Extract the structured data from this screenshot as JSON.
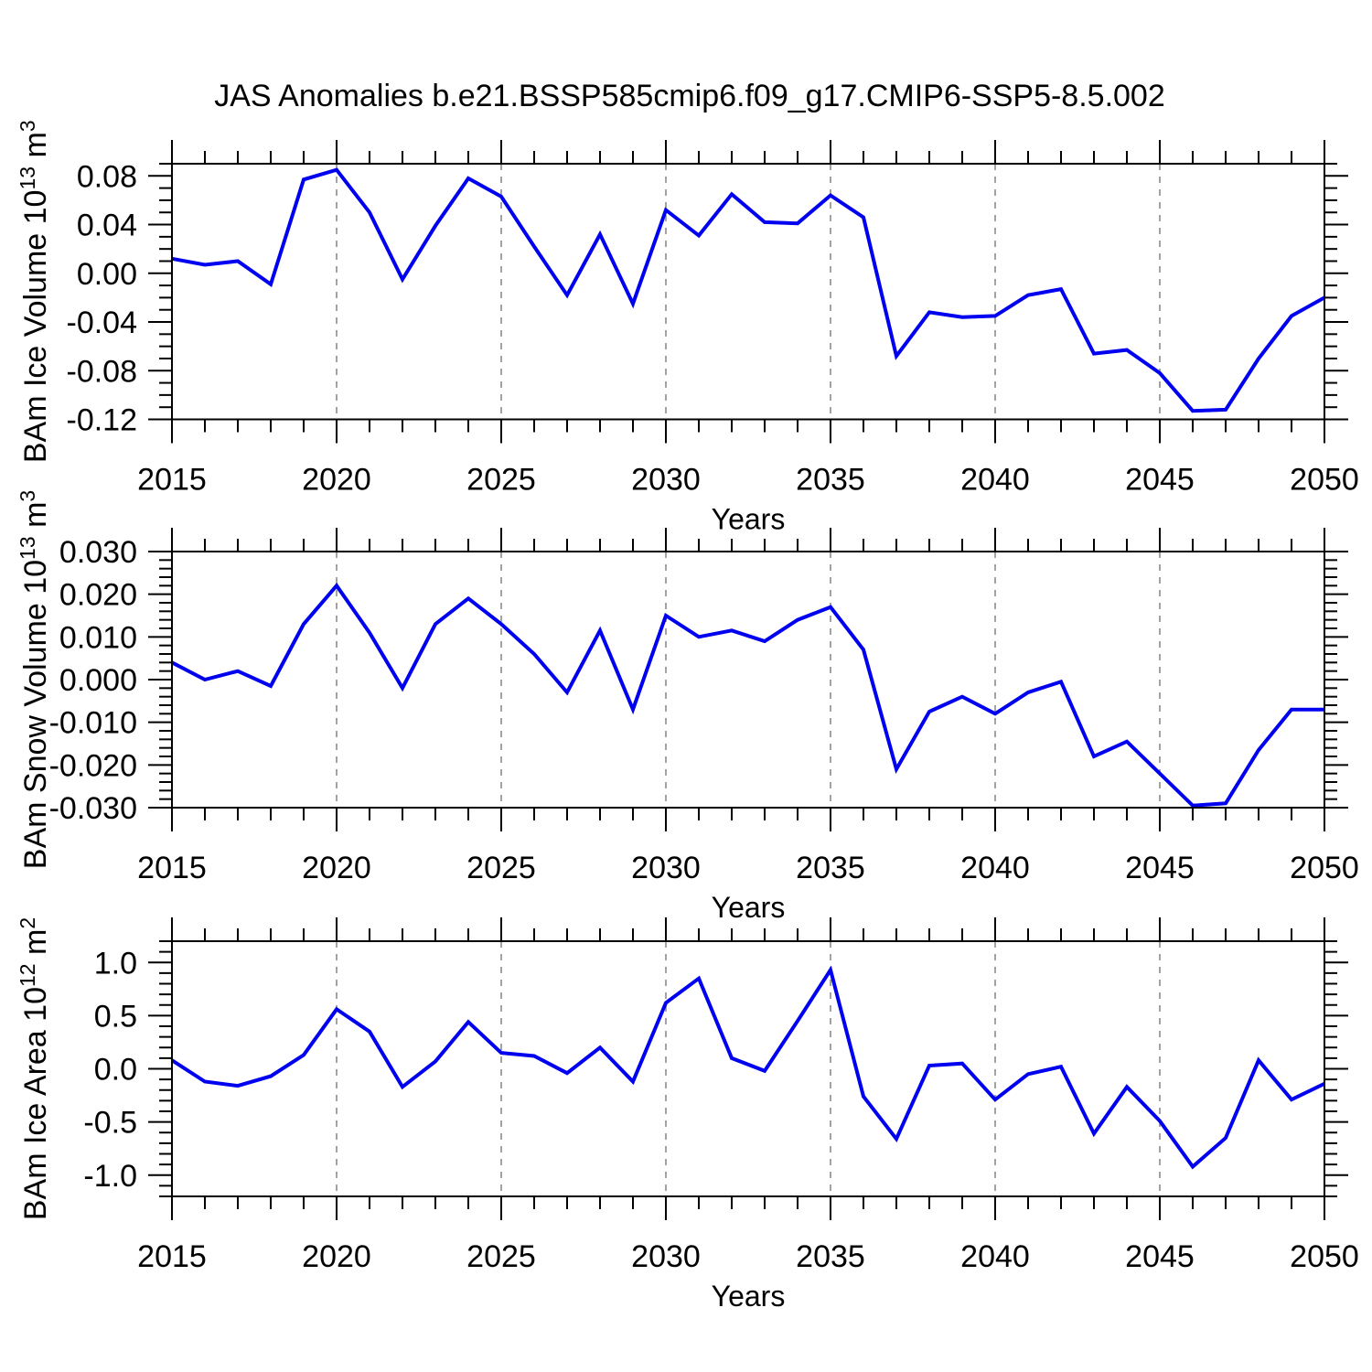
{
  "chart_data": {
    "type": "line",
    "title": "JAS Anomalies b.e21.BSSP585cmip6.f09_g17.CMIP6-SSP5-8.5.002",
    "line_color": "#0000f0",
    "grid_color": "#999999",
    "axis_color": "#000000",
    "x": {
      "label": "Years",
      "start": 2015,
      "end": 2050,
      "step": 1,
      "major_ticks": [
        2015,
        2020,
        2025,
        2030,
        2035,
        2040,
        2045,
        2050
      ],
      "tick_labels": [
        "2015",
        "2020",
        "2025",
        "2030",
        "2035",
        "2040",
        "2045",
        "2050"
      ],
      "minor_step": 1,
      "gridline_years": [
        2020,
        2025,
        2030,
        2035,
        2040,
        2045
      ],
      "grid_on": true
    },
    "panels": [
      {
        "name": "ice-volume",
        "ylabel": "BAm Ice Volume 10^13 m^3",
        "ylim": [
          -0.12,
          0.09
        ],
        "yticks": [
          0.08,
          0.04,
          0,
          -0.04,
          -0.08,
          -0.12
        ],
        "ytick_labels": [
          "0.08",
          "0.04",
          "0.00",
          "-0.04",
          "-0.08",
          "-0.12"
        ],
        "y_minor_step": 0.01,
        "values": [
          0.012,
          0.007,
          0.01,
          -0.009,
          0.077,
          0.085,
          0.05,
          -0.005,
          0.039,
          0.078,
          0.063,
          0.022,
          -0.018,
          0.032,
          -0.025,
          0.052,
          0.031,
          0.065,
          0.042,
          0.041,
          0.064,
          0.046,
          -0.068,
          -0.032,
          -0.036,
          -0.035,
          -0.018,
          -0.013,
          -0.066,
          -0.063,
          -0.082,
          -0.113,
          -0.112,
          -0.07,
          -0.035,
          -0.02
        ]
      },
      {
        "name": "snow-volume",
        "ylabel": "BAm Snow Volume 10^13 m^3",
        "ylim": [
          -0.03,
          0.03
        ],
        "yticks": [
          0.03,
          0.02,
          0.01,
          0,
          -0.01,
          -0.02,
          -0.03
        ],
        "ytick_labels": [
          "0.030",
          "0.020",
          "0.010",
          "0.000",
          "-0.010",
          "-0.020",
          "-0.030"
        ],
        "y_minor_step": 0.002,
        "values": [
          0.004,
          0.0,
          0.002,
          -0.0015,
          0.013,
          0.022,
          0.011,
          -0.002,
          0.013,
          0.019,
          0.013,
          0.006,
          -0.003,
          0.0115,
          -0.007,
          0.015,
          0.01,
          0.0115,
          0.009,
          0.014,
          0.017,
          0.007,
          -0.021,
          -0.0075,
          -0.004,
          -0.008,
          -0.003,
          -0.0005,
          -0.018,
          -0.0145,
          -0.022,
          -0.0295,
          -0.029,
          -0.0165,
          -0.007,
          -0.007
        ]
      },
      {
        "name": "ice-area",
        "ylabel": "BAm Ice Area 10^12 m^2",
        "ylim": [
          -1.2,
          1.2
        ],
        "yticks": [
          1.0,
          0.5,
          0,
          -0.5,
          -1.0
        ],
        "ytick_labels": [
          "1.0",
          "0.5",
          "0.0",
          "-0.5",
          "-1.0"
        ],
        "y_minor_step": 0.1,
        "values": [
          0.08,
          -0.12,
          -0.16,
          -0.07,
          0.13,
          0.56,
          0.35,
          -0.17,
          0.07,
          0.44,
          0.15,
          0.12,
          -0.04,
          0.2,
          -0.12,
          0.62,
          0.85,
          0.1,
          -0.02,
          0.45,
          0.93,
          -0.26,
          -0.66,
          0.03,
          0.05,
          -0.29,
          -0.05,
          0.02,
          -0.61,
          -0.17,
          -0.49,
          -0.92,
          -0.65,
          0.08,
          -0.29,
          -0.14
        ]
      }
    ]
  }
}
